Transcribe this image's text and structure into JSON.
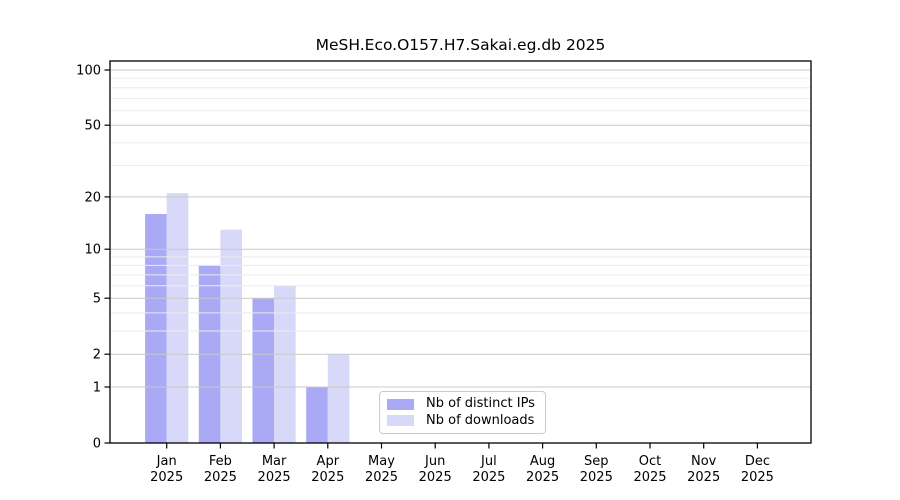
{
  "chart_data": {
    "type": "bar",
    "title": "MeSH.Eco.O157.H7.Sakai.eg.db 2025",
    "categories": [
      "Jan 2025",
      "Feb 2025",
      "Mar 2025",
      "Apr 2025",
      "May 2025",
      "Jun 2025",
      "Jul 2025",
      "Aug 2025",
      "Sep 2025",
      "Oct 2025",
      "Nov 2025",
      "Dec 2025"
    ],
    "series": [
      {
        "name": "Nb of distinct IPs",
        "color": "#a9a9f5",
        "values": [
          16,
          8,
          5,
          1,
          0,
          0,
          0,
          0,
          0,
          0,
          0,
          0
        ]
      },
      {
        "name": "Nb of downloads",
        "color": "#d8d8f8",
        "values": [
          21,
          13,
          6,
          2,
          0,
          0,
          0,
          0,
          0,
          0,
          0,
          0
        ]
      }
    ],
    "xlabel": "",
    "ylabel": "",
    "y_scale": "log10(1+v)",
    "y_major_ticks": [
      0,
      1,
      2,
      5,
      10,
      20,
      50,
      100
    ],
    "y_minor_gridlines": [
      3,
      4,
      6,
      7,
      8,
      9,
      30,
      40,
      60,
      70,
      80,
      90
    ],
    "ylim": [
      0,
      112
    ],
    "grid": true,
    "legend_position": "lower center-left inside plot"
  },
  "colors": {
    "axis": "#000000",
    "grid_major": "#c9c9c9",
    "grid_minor": "#ececec",
    "legend_border": "#cccccc",
    "background": "#ffffff"
  }
}
